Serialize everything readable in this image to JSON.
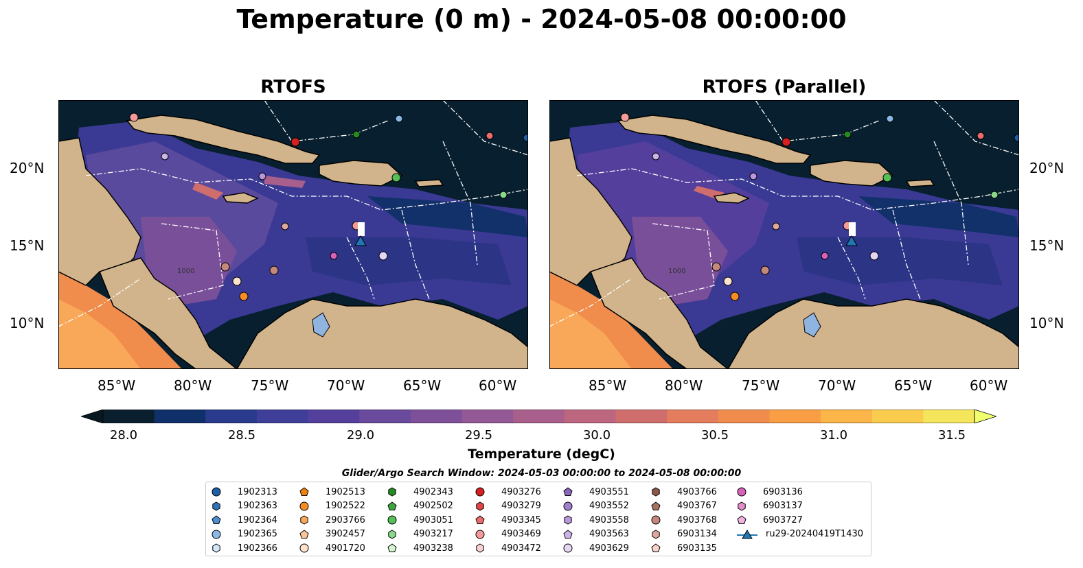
{
  "title": "Temperature (0 m) - 2024-05-08 00:00:00",
  "panels": [
    {
      "title": "RTOFS"
    },
    {
      "title": "RTOFS (Parallel)"
    }
  ],
  "map": {
    "lon_ticks": [
      "85°W",
      "80°W",
      "75°W",
      "70°W",
      "65°W",
      "60°W"
    ],
    "lat_ticks": [
      "20°N",
      "15°N",
      "10°N"
    ],
    "contour_label": "1000"
  },
  "colorbar": {
    "label": "Temperature (degC)",
    "ticks": [
      "28.0",
      "28.5",
      "29.0",
      "29.5",
      "30.0",
      "30.5",
      "31.0",
      "31.5"
    ],
    "vmin": 28.0,
    "vmax": 31.5,
    "extend": "both",
    "colors": [
      "#0a1f2e",
      "#10306a",
      "#2a3a8c",
      "#3f3f9a",
      "#553f9c",
      "#6a4a9c",
      "#7e509a",
      "#935896",
      "#a85f8c",
      "#bd6680",
      "#d06e6e",
      "#e37d5e",
      "#f08c4c",
      "#f99e44",
      "#fbb548",
      "#f9cc4e",
      "#f5e55a"
    ],
    "over_color": "#f0ff6e",
    "under_color": "#071820"
  },
  "search_window": "Glider/Argo Search Window: 2024-05-03 00:00:00 to 2024-05-08 00:00:00",
  "legend": {
    "placement": "bottom-center",
    "entries": [
      {
        "label": "1902313",
        "marker": "circle",
        "color": "#1f5fa8"
      },
      {
        "label": "1902363",
        "marker": "hexagon",
        "color": "#2e75b6"
      },
      {
        "label": "1902364",
        "marker": "pentagon",
        "color": "#4d8fcf"
      },
      {
        "label": "1902365",
        "marker": "circle",
        "color": "#8ab8e6"
      },
      {
        "label": "1902366",
        "marker": "hexagon",
        "color": "#d3e7fa"
      },
      {
        "label": "1902513",
        "marker": "pentagon",
        "color": "#f07f0c"
      },
      {
        "label": "1902522",
        "marker": "circle",
        "color": "#f58d24"
      },
      {
        "label": "2903766",
        "marker": "hexagon",
        "color": "#f9a85a"
      },
      {
        "label": "3902457",
        "marker": "pentagon",
        "color": "#fac596"
      },
      {
        "label": "4901720",
        "marker": "circle",
        "color": "#fde3cd"
      },
      {
        "label": "4902343",
        "marker": "hexagon",
        "color": "#238b22"
      },
      {
        "label": "4902502",
        "marker": "pentagon",
        "color": "#3aa53a"
      },
      {
        "label": "4903051",
        "marker": "circle",
        "color": "#55c055"
      },
      {
        "label": "4903217",
        "marker": "hexagon",
        "color": "#8ad98a"
      },
      {
        "label": "4903238",
        "marker": "pentagon",
        "color": "#d5f5d0"
      },
      {
        "label": "4903276",
        "marker": "circle",
        "color": "#d62020"
      },
      {
        "label": "4903279",
        "marker": "hexagon",
        "color": "#e24444"
      },
      {
        "label": "4903345",
        "marker": "pentagon",
        "color": "#ed6b6b"
      },
      {
        "label": "4903469",
        "marker": "circle",
        "color": "#f49a9a"
      },
      {
        "label": "4903472",
        "marker": "hexagon",
        "color": "#fbd0d0"
      },
      {
        "label": "4903551",
        "marker": "pentagon",
        "color": "#8a63bd"
      },
      {
        "label": "4903552",
        "marker": "circle",
        "color": "#a27fce"
      },
      {
        "label": "4903558",
        "marker": "hexagon",
        "color": "#b897dc"
      },
      {
        "label": "4903563",
        "marker": "pentagon",
        "color": "#ccb3e8"
      },
      {
        "label": "4903629",
        "marker": "circle",
        "color": "#e6d6f5"
      },
      {
        "label": "4903766",
        "marker": "hexagon",
        "color": "#8c564b"
      },
      {
        "label": "4903767",
        "marker": "pentagon",
        "color": "#a76f62"
      },
      {
        "label": "4903768",
        "marker": "circle",
        "color": "#c4887c"
      },
      {
        "label": "6903134",
        "marker": "hexagon",
        "color": "#dfa89c"
      },
      {
        "label": "6903135",
        "marker": "pentagon",
        "color": "#f8d3c8"
      },
      {
        "label": "6903136",
        "marker": "circle",
        "color": "#d862b8"
      },
      {
        "label": "6903137",
        "marker": "hexagon",
        "color": "#e38ccb"
      },
      {
        "label": "6903727",
        "marker": "pentagon",
        "color": "#f0b2de"
      },
      {
        "label": "ru29-20240419T1430",
        "marker": "triangle-line",
        "color": "#1f77b4"
      }
    ]
  },
  "colors": {
    "ocean_deep": "#071f2e",
    "land": "#d2b48c",
    "lake": "#8fb4e0",
    "river": "#9ab2c8",
    "eez_line": "#ffffff"
  }
}
